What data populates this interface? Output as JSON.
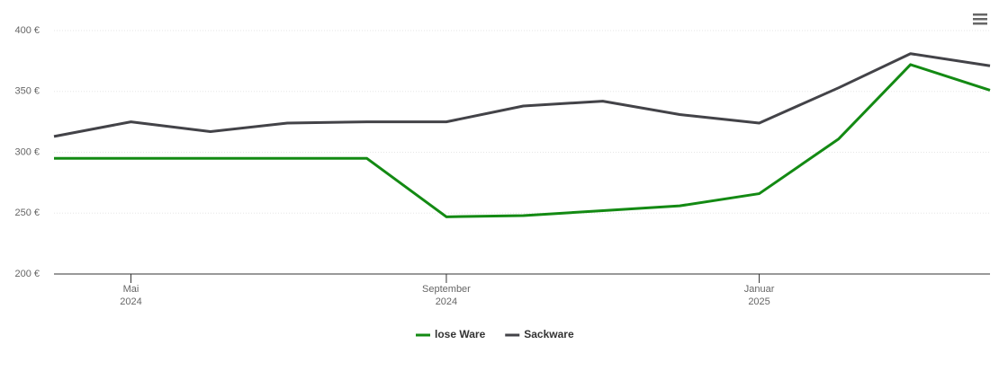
{
  "chart_data": {
    "type": "line",
    "x": [
      "2024-04",
      "2024-05",
      "2024-06",
      "2024-07",
      "2024-08",
      "2024-09",
      "2024-10",
      "2024-11",
      "2024-12",
      "2025-01",
      "2025-02",
      "2025-03",
      "2025-04"
    ],
    "series": [
      {
        "name": "lose Ware",
        "color": "#138a13",
        "values": [
          295,
          295,
          295,
          295,
          295,
          247,
          248,
          252,
          256,
          266,
          311,
          372,
          351
        ]
      },
      {
        "name": "Sackware",
        "color": "#434348",
        "values": [
          313,
          325,
          317,
          324,
          325,
          325,
          338,
          342,
          331,
          324,
          353,
          381,
          371
        ]
      }
    ],
    "xlim": [
      "2024-04",
      "2025-04"
    ],
    "xticks": [
      {
        "value": "2024-05",
        "label": [
          "Mai",
          "2024"
        ]
      },
      {
        "value": "2024-09",
        "label": [
          "September",
          "2024"
        ]
      },
      {
        "value": "2025-01",
        "label": [
          "Januar",
          "2025"
        ]
      }
    ],
    "ylim": [
      200,
      400
    ],
    "yticks": [
      {
        "value": 200,
        "label": "200 €"
      },
      {
        "value": 250,
        "label": "250 €"
      },
      {
        "value": 300,
        "label": "300 €"
      },
      {
        "value": 350,
        "label": "350 €"
      },
      {
        "value": 400,
        "label": "400 €"
      }
    ],
    "grid": true,
    "legend": "bottom"
  }
}
